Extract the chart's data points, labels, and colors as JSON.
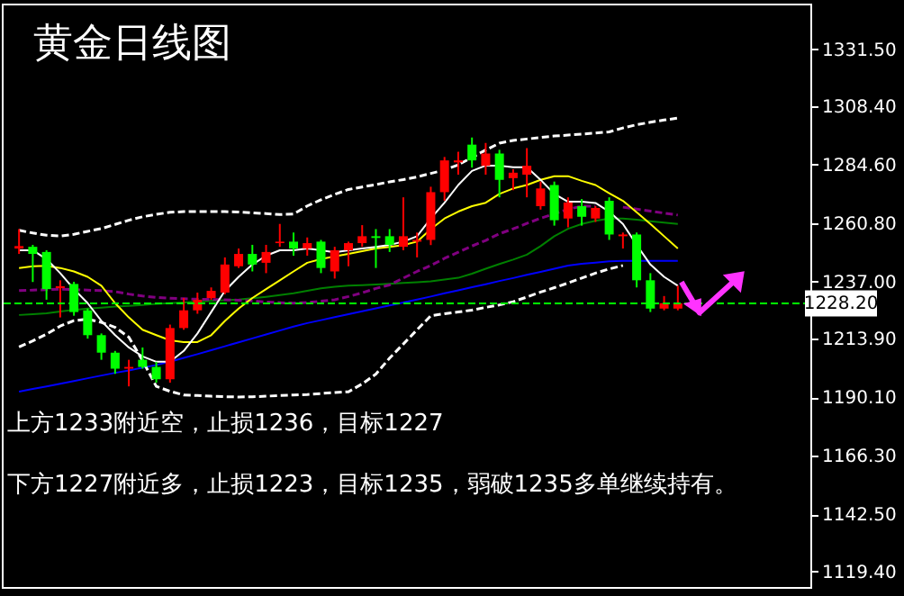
{
  "chart_data": {
    "type": "candlestick",
    "title": "黄金日线图",
    "annotations": [
      "上方1233附近空，止损1236，目标1227",
      "下方1227附近多，止损1223，目标1235，弱破1235多单继续持有。"
    ],
    "categories": [
      null,
      null,
      null,
      null,
      null,
      null,
      null,
      null,
      null,
      null,
      null,
      null,
      null,
      null,
      null,
      null,
      null,
      null,
      null,
      null,
      null,
      null,
      null,
      null,
      null,
      null,
      null,
      null,
      null,
      null,
      null,
      null,
      null,
      null,
      null,
      null,
      null,
      null,
      null,
      null,
      null,
      null,
      null,
      null,
      null,
      null,
      null,
      null,
      null
    ],
    "ohlc": [
      [
        1250.5,
        1258.4,
        1248.3,
        1251.5
      ],
      [
        1251.2,
        1252,
        1236.9,
        1248.3
      ],
      [
        1249.1,
        1249.8,
        1229.7,
        1234
      ],
      [
        1234.4,
        1237.6,
        1222.5,
        1235.2
      ],
      [
        1236.1,
        1237,
        1223.2,
        1224.7
      ],
      [
        1225.4,
        1226.1,
        1213.9,
        1215.3
      ],
      [
        1215.3,
        1216,
        1205.3,
        1208.2
      ],
      [
        1208.2,
        1208.9,
        1199.6,
        1201.7
      ],
      [
        1201.7,
        1205.3,
        1194.5,
        1202.4
      ],
      [
        1205.3,
        1210.3,
        1201.7,
        1202.4
      ],
      [
        1202.4,
        1204.5,
        1196,
        1197.4
      ],
      [
        1197.4,
        1219.6,
        1196,
        1218.2
      ],
      [
        1218.2,
        1230.4,
        1217.5,
        1225.4
      ],
      [
        1225.4,
        1232.6,
        1224,
        1229.7
      ],
      [
        1230.4,
        1234.7,
        1229.7,
        1233.3
      ],
      [
        1232.6,
        1246.9,
        1231.9,
        1244
      ],
      [
        1243.3,
        1250.5,
        1242.6,
        1248.3
      ],
      [
        1248.3,
        1252,
        1241.2,
        1244
      ],
      [
        1244.7,
        1252,
        1240.5,
        1249.1
      ],
      [
        1252.7,
        1260.5,
        1251.2,
        1253.3
      ],
      [
        1253.3,
        1257,
        1247.6,
        1250.5
      ],
      [
        1250.5,
        1255,
        1247.6,
        1252.7
      ],
      [
        1253.3,
        1254,
        1240.5,
        1242.6
      ],
      [
        1241.2,
        1251.2,
        1238.3,
        1249.8
      ],
      [
        1249.8,
        1253.3,
        1243.3,
        1252.7
      ],
      [
        1252.7,
        1260,
        1251.2,
        1255.5
      ],
      [
        1255.5,
        1258.4,
        1242.6,
        1254.8
      ],
      [
        1255.5,
        1258.4,
        1249.1,
        1252
      ],
      [
        1251.2,
        1271.3,
        1249.8,
        1255.5
      ],
      [
        1253.3,
        1257,
        1246.9,
        1254
      ],
      [
        1254,
        1275.6,
        1251.9,
        1273.4
      ],
      [
        1273.4,
        1287.7,
        1269.9,
        1286.3
      ],
      [
        1285.5,
        1289.8,
        1280.5,
        1286.3
      ],
      [
        1292.7,
        1295.6,
        1283.4,
        1286.3
      ],
      [
        1284.1,
        1293.4,
        1280.5,
        1289.1
      ],
      [
        1289.1,
        1290.6,
        1271.3,
        1278.4
      ],
      [
        1279.1,
        1282.7,
        1274.2,
        1281.3
      ],
      [
        1280.5,
        1291.3,
        1271.3,
        1284.1
      ],
      [
        1267.7,
        1277.7,
        1266.3,
        1274.9
      ],
      [
        1276.3,
        1277.7,
        1259.8,
        1262
      ],
      [
        1262.7,
        1271.3,
        1259.1,
        1269.2
      ],
      [
        1267.7,
        1270.6,
        1259.8,
        1263.4
      ],
      [
        1262.7,
        1267.7,
        1261.3,
        1267
      ],
      [
        1269.9,
        1271.3,
        1254,
        1256.2
      ],
      [
        1255.5,
        1257,
        1250.5,
        1256.2
      ],
      [
        1256.2,
        1257,
        1234.7,
        1237.6
      ],
      [
        1237.6,
        1240.5,
        1224.7,
        1226.1
      ],
      [
        1226.1,
        1231.2,
        1225.4,
        1228.3
      ],
      [
        1226.1,
        1235.4,
        1225.4,
        1228.2
      ]
    ],
    "colors": [
      "#ff0000",
      "#00ff00",
      "#00ff00",
      "#ff0000",
      "#00ff00",
      "#00ff00",
      "#00ff00",
      "#00ff00",
      "#ff0000",
      "#00ff00",
      "#00ff00",
      "#ff0000",
      "#ff0000",
      "#ff0000",
      "#ff0000",
      "#ff0000",
      "#ff0000",
      "#00ff00",
      "#ff0000",
      "#ff0000",
      "#00ff00",
      "#ff0000",
      "#00ff00",
      "#ff0000",
      "#ff0000",
      "#ff0000",
      "#00ff00",
      "#00ff00",
      "#ff0000",
      "#ff0000",
      "#ff0000",
      "#ff0000",
      "#ff0000",
      "#00ff00",
      "#ff0000",
      "#00ff00",
      "#ff0000",
      "#ff0000",
      "#ff0000",
      "#00ff00",
      "#ff0000",
      "#00ff00",
      "#ff0000",
      "#00ff00",
      "#ff0000",
      "#00ff00",
      "#00ff00",
      "#ff0000",
      "#ff0000"
    ],
    "series": [
      {
        "type": "line",
        "color": "#0000ff",
        "line_style": "solid",
        "values": [
          1192.4,
          1193.5,
          1194.5,
          1195.6,
          1196.7,
          1197.8,
          1198.9,
          1200,
          1201,
          1202.1,
          1203.2,
          1204.5,
          1206.1,
          1207.6,
          1209.2,
          1210.8,
          1212.4,
          1214,
          1215.6,
          1217.2,
          1218.8,
          1220.2,
          1221.4,
          1222.6,
          1223.8,
          1225,
          1226.2,
          1227.4,
          1228.6,
          1229.8,
          1231,
          1232.3,
          1233.5,
          1234.8,
          1236,
          1237.3,
          1238.5,
          1239.8,
          1241,
          1242.3,
          1243.6,
          1244.3,
          1244.8,
          1245.3,
          1245.5,
          1245.5,
          1245.5,
          1245.5,
          1245.5
        ]
      },
      {
        "type": "line",
        "color": "#008000",
        "line_style": "solid",
        "values": [
          1223.5,
          1223.8,
          1224.2,
          1224.9,
          1225.6,
          1226.1,
          1226.5,
          1226.9,
          1227.2,
          1227.6,
          1228,
          1228.3,
          1228.6,
          1228.9,
          1229.2,
          1229.5,
          1229.8,
          1230.3,
          1230.9,
          1231.6,
          1232.3,
          1233.3,
          1234.3,
          1235,
          1235.4,
          1235.6,
          1235.9,
          1236.2,
          1236.5,
          1236.8,
          1237.2,
          1237.9,
          1238.6,
          1240.3,
          1242.3,
          1244.2,
          1246,
          1248,
          1251.5,
          1255.5,
          1258.5,
          1260.5,
          1261.8,
          1262.7,
          1262.7,
          1262.2,
          1261.6,
          1261,
          1260.5
        ]
      },
      {
        "type": "line",
        "color": "#800080",
        "line_style": "dashed",
        "values": [
          1233.4,
          1233.6,
          1233.8,
          1234,
          1233.8,
          1233.6,
          1233.4,
          1233,
          1232,
          1231.2,
          1230.6,
          1230.3,
          1230.1,
          1229.9,
          1229.8,
          1229.7,
          1229.5,
          1229.2,
          1228.8,
          1228.5,
          1228.3,
          1228.6,
          1229.1,
          1229.7,
          1231,
          1232.5,
          1234.3,
          1235.7,
          1238.5,
          1241.2,
          1243.6,
          1246.5,
          1249,
          1251.5,
          1253.8,
          1256.5,
          1258.5,
          1260.7,
          1262.8,
          1264.6,
          1266.5,
          1267.7,
          1267.7,
          null,
          1267.3,
          1266.5,
          1265.7,
          1264.9,
          1264.1
        ]
      },
      {
        "type": "line",
        "color": "#ffffff",
        "line_style": "dashed",
        "values": [
          1257.9,
          1256.8,
          1255.9,
          1255.6,
          1256.3,
          1257.5,
          1258.6,
          1260.3,
          1262,
          1263.4,
          1264.4,
          1265.2,
          1265.5,
          1265.5,
          1265.5,
          1265.5,
          1265.3,
          1265,
          1264.7,
          1264.3,
          1264.5,
          1267.8,
          1270.3,
          1272.5,
          1274.5,
          1275.5,
          1276.5,
          1277.6,
          1278.5,
          1279.6,
          1281,
          1282.4,
          1284.5,
          1287.5,
          1290.5,
          1293.3,
          1294.4,
          1295,
          1295.6,
          1296.2,
          1296.6,
          1297,
          1297.4,
          1297.9,
          1299.5,
          1300.8,
          1301.8,
          1302.7,
          1303.5
        ]
      },
      {
        "type": "line",
        "color": "#ffffff",
        "line_style": "dashed",
        "values": [
          1210.5,
          1213,
          1215.7,
          1219,
          1221.2,
          1221.8,
          1220.5,
          1218.5,
          1214.5,
          1205,
          1194.5,
          1192.5,
          1191,
          1190.8,
          1190.5,
          1190.3,
          1190.2,
          1190.3,
          1190.5,
          1190.8,
          1191,
          1191.2,
          1191.6,
          1192,
          1192.3,
          1195.5,
          1199.5,
          1206,
          1211.7,
          1217.5,
          1223.2,
          1224,
          1224.7,
          1225.5,
          1226.6,
          1227.6,
          1228.9,
          1230.8,
          1232.8,
          1234.6,
          1236.5,
          1238.5,
          1240.5,
          1242.2,
          1243.6,
          null,
          null,
          null,
          null
        ]
      },
      {
        "type": "line",
        "color": "#ffff00",
        "line_style": "solid",
        "values": [
          1242.6,
          1243.3,
          1243.5,
          1242.6,
          1241.2,
          1239,
          1235.4,
          1228.3,
          1222.5,
          1217.5,
          1215.3,
          1213.2,
          1212.5,
          1212.5,
          1215.3,
          1221.1,
          1226.1,
          1230.4,
          1234,
          1237.6,
          1241.2,
          1244.7,
          1246.2,
          1247.3,
          1248.3,
          1249.4,
          1250.5,
          1251.2,
          1251.9,
          1253.3,
          1258.4,
          1262.7,
          1265.5,
          1267.7,
          1269.1,
          1272.7,
          1274.9,
          1276.3,
          1278.4,
          1279.9,
          1279.9,
          1278,
          1276.3,
          1273,
          1269.9,
          1265.2,
          1260.5,
          1255.5,
          1250.5
        ]
      },
      {
        "type": "line",
        "color": "#ffffff",
        "line_style": "solid",
        "values": [
          1249.8,
          1249.8,
          1246.2,
          1240.5,
          1234,
          1228.3,
          1221.1,
          1215.3,
          1210.3,
          1206.7,
          1204.5,
          1204.5,
          1208.9,
          1216,
          1224.7,
          1233.3,
          1239,
          1244,
          1247.6,
          1249.8,
          1249.8,
          1250.5,
          1249.8,
          1249,
          1249.8,
          1250.5,
          1251.2,
          1252,
          1253.3,
          1255.5,
          1262.7,
          1269.1,
          1276.3,
          1282,
          1284.2,
          1284.2,
          1283.5,
          1283.5,
          1278.4,
          1272.7,
          1269.5,
          1269.5,
          1269,
          1265.5,
          1260.5,
          1252,
          1244,
          1239,
          1235.4
        ]
      }
    ],
    "ref_lines": [
      {
        "axis": "y",
        "value": 1228.2,
        "label": "1228.20",
        "color": "#00ff00",
        "line_style": "dashed"
      }
    ],
    "ylim": [
      1113,
      1350
    ],
    "yticks": [
      {
        "value": 1331.5,
        "label": "1331.50"
      },
      {
        "value": 1308.4,
        "label": "1308.40"
      },
      {
        "value": 1284.6,
        "label": "1284.60"
      },
      {
        "value": 1260.8,
        "label": "1260.80"
      },
      {
        "value": 1237,
        "label": "1237.00"
      },
      {
        "value": 1213.9,
        "label": "1213.90"
      },
      {
        "value": 1190.1,
        "label": "1190.10"
      },
      {
        "value": 1166.3,
        "label": "1166.30"
      },
      {
        "value": 1142.5,
        "label": "1142.50"
      },
      {
        "value": 1119.4,
        "label": "1119.40"
      }
    ]
  }
}
